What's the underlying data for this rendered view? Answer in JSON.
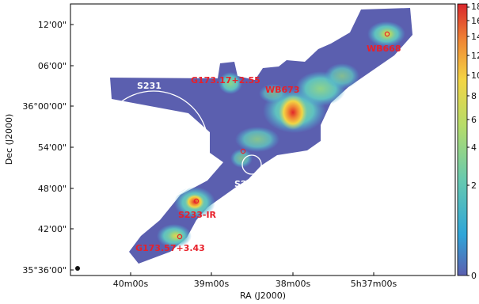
{
  "map": {
    "dec_ticks": [
      "12'00\"",
      "06'00\"",
      "36°00'00\"",
      "54'00\"",
      "48'00\"",
      "42'00\"",
      "35°36'00\""
    ],
    "ra_ticks": [
      "40m00s",
      "39m00s",
      "38m00s",
      "5h37m00s"
    ],
    "xlabel": "RA (J2000)",
    "ylabel": "Dec (J2000)",
    "regions": {
      "s231": "S231",
      "s233": "S233",
      "wb673": "WB673",
      "wb668": "WB668",
      "g173_17": "G173.17+2.55",
      "s233ir": "S233-IR",
      "g173_57": "G173.57+3.43"
    }
  },
  "colorbar": {
    "ticks": [
      "18",
      "16",
      "14",
      "12",
      "10",
      "8",
      "6",
      "4",
      "2",
      "0"
    ],
    "colors": [
      "#5b5faf",
      "#2fa5d8",
      "#66c9b0",
      "#b5dc6a",
      "#f3d544",
      "#f08a35",
      "#d9262c"
    ]
  }
}
